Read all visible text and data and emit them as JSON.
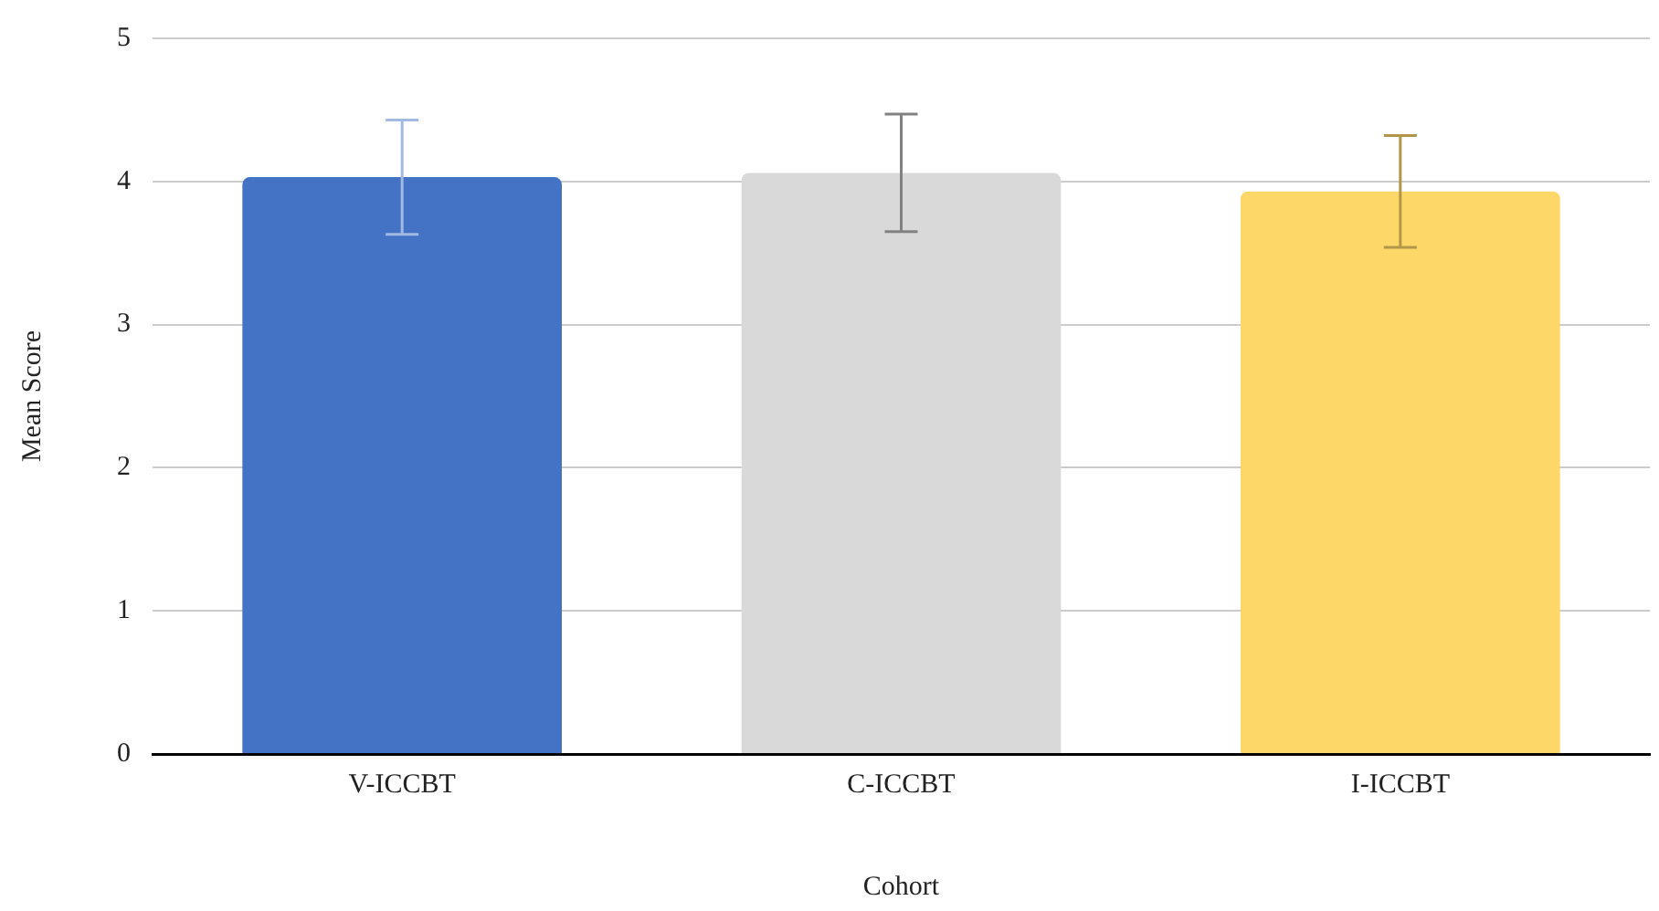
{
  "chart_data": {
    "type": "bar",
    "xlabel": "Cohort",
    "ylabel": "Mean Score",
    "categories": [
      "V-ICCBT",
      "C-ICCBT",
      "I-ICCBT"
    ],
    "values": [
      4.03,
      4.06,
      3.93
    ],
    "colors": [
      "#4472c4",
      "#d9d9d9",
      "#fdd768"
    ],
    "errors": [
      0.4,
      0.41,
      0.39
    ],
    "ylim": [
      0,
      5
    ],
    "yticks": [
      0,
      1,
      2,
      3,
      4,
      5
    ],
    "grid": "y",
    "legend": false
  }
}
